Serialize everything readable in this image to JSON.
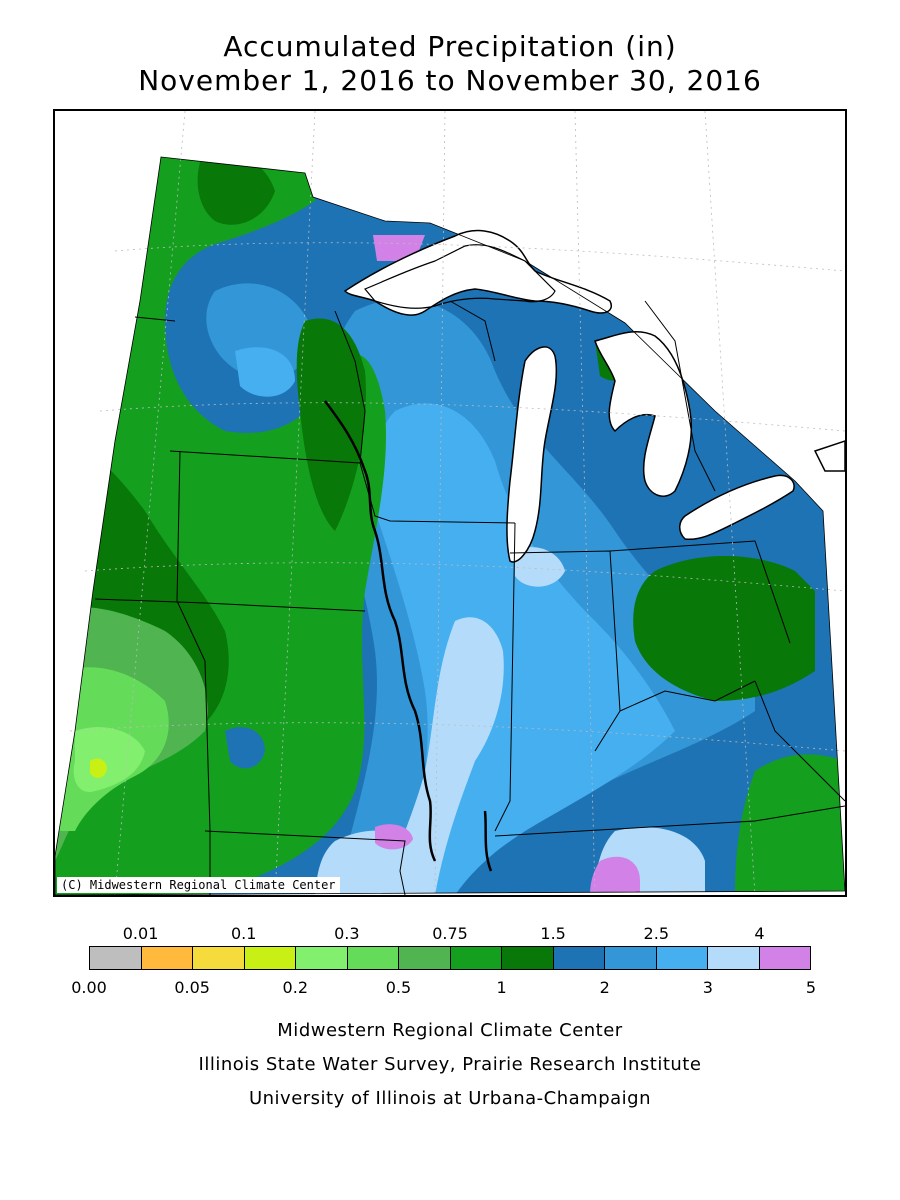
{
  "title": {
    "line1": "Accumulated Precipitation (in)",
    "line2": "November 1, 2016 to November 30, 2016"
  },
  "map": {
    "credit": "(C) Midwestern Regional Climate Center",
    "water_color": "#ffffff",
    "border_color": "#000000"
  },
  "legend": {
    "colors": [
      "#bebebe",
      "#ffb93c",
      "#f5dc3c",
      "#c8f014",
      "#82f06e",
      "#64dc5a",
      "#50b450",
      "#14a01e",
      "#087808",
      "#1e73b4",
      "#3296d7",
      "#46aff0",
      "#b4dcfa",
      "#d282e6"
    ],
    "top_labels": [
      "0.01",
      "0.1",
      "0.3",
      "0.75",
      "1.5",
      "2.5",
      "4"
    ],
    "bottom_labels": [
      "0.00",
      "0.05",
      "0.2",
      "0.5",
      "1",
      "2",
      "3",
      "5"
    ]
  },
  "footer": {
    "line1": "Midwestern Regional Climate Center",
    "line2": "Illinois State Water Survey, Prairie Research Institute",
    "line3": "University of Illinois at Urbana-Champaign"
  }
}
